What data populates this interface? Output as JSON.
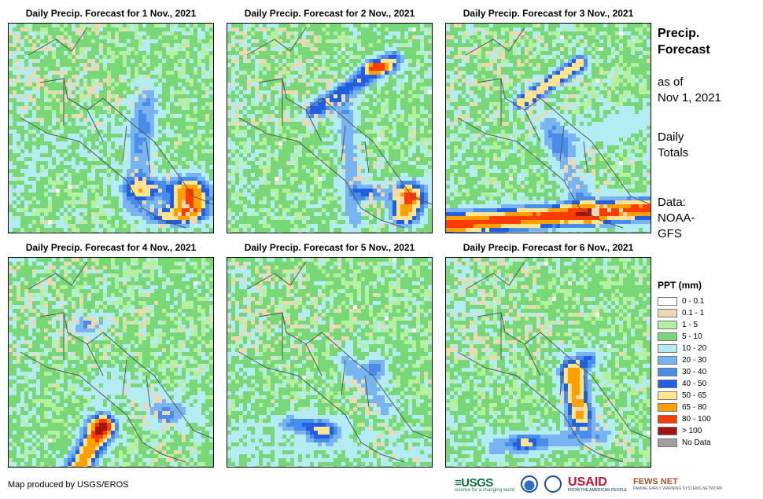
{
  "panels": [
    {
      "title": "Daily Precip. Forecast for 1 Nov., 2021"
    },
    {
      "title": "Daily Precip. Forecast for 2 Nov., 2021"
    },
    {
      "title": "Daily Precip. Forecast for 3 Nov., 2021"
    },
    {
      "title": "Daily Precip. Forecast for 4 Nov., 2021"
    },
    {
      "title": "Daily Precip. Forecast for 5 Nov., 2021"
    },
    {
      "title": "Daily Precip. Forecast for 6 Nov., 2021"
    }
  ],
  "side": {
    "title_line1": "Precip.",
    "title_line2": "Forecast",
    "asof_line1": "as of",
    "asof_line2": "Nov 1, 2021",
    "totals_line1": "Daily",
    "totals_line2": "Totals",
    "source_line1": "Data:",
    "source_line2": "NOAA-",
    "source_line3": "GFS"
  },
  "legend": {
    "title": "PPT (mm)",
    "items": [
      {
        "label": "0 - 0.1",
        "color": "#ffffff"
      },
      {
        "label": "0.1 - 1",
        "color": "#ecd9b4"
      },
      {
        "label": "1 - 5",
        "color": "#b4f0a0"
      },
      {
        "label": "5 - 10",
        "color": "#78d878"
      },
      {
        "label": "10 - 20",
        "color": "#b4ecf4"
      },
      {
        "label": "20 - 30",
        "color": "#78b4f0"
      },
      {
        "label": "30 - 40",
        "color": "#4a8cea"
      },
      {
        "label": "40 - 50",
        "color": "#2060e0"
      },
      {
        "label": "50 - 65",
        "color": "#ffe68c"
      },
      {
        "label": "65 - 80",
        "color": "#ffa000"
      },
      {
        "label": "80 - 100",
        "color": "#ff3c00"
      },
      {
        "label": "> 100",
        "color": "#a01414"
      },
      {
        "label": "No Data",
        "color": "#a0a0a0"
      }
    ]
  },
  "credit": "Map produced by USGS/EROS",
  "logos": {
    "usgs": "≡USGS",
    "usgs_tagline": "science for a changing world",
    "usaid": "USAID",
    "usaid_tagline": "FROM THE AMERICAN PEOPLE",
    "fews": "FEWS NET",
    "fews_tagline": "FAMINE EARLY WARNING SYSTEMS NETWORK"
  }
}
